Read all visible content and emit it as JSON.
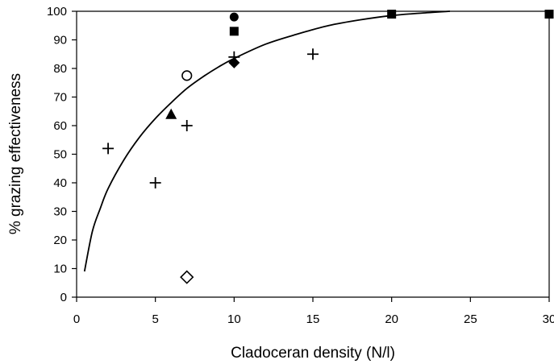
{
  "chart_data": {
    "type": "scatter",
    "title": "",
    "xlabel": "Cladoceran density (N/l)",
    "ylabel": "% grazing effectiveness",
    "xlim": [
      0,
      30
    ],
    "ylim": [
      0,
      100
    ],
    "x_ticks": [
      0,
      5,
      10,
      15,
      20,
      25,
      30
    ],
    "y_ticks": [
      0,
      10,
      20,
      30,
      40,
      50,
      60,
      70,
      80,
      90,
      100
    ],
    "grid": false,
    "legend": "none",
    "series": [
      {
        "marker": "plus",
        "points": [
          [
            2,
            52
          ],
          [
            5,
            40
          ],
          [
            7,
            60
          ],
          [
            10,
            84
          ],
          [
            15,
            85
          ]
        ]
      },
      {
        "marker": "filled-circle",
        "points": [
          [
            10,
            98
          ]
        ]
      },
      {
        "marker": "filled-square",
        "points": [
          [
            10,
            93
          ],
          [
            20,
            99
          ],
          [
            30,
            99
          ]
        ]
      },
      {
        "marker": "open-circle",
        "points": [
          [
            7,
            77.5
          ]
        ]
      },
      {
        "marker": "filled-triangle",
        "points": [
          [
            6,
            64
          ]
        ]
      },
      {
        "marker": "filled-diamond",
        "points": [
          [
            10,
            82
          ]
        ]
      },
      {
        "marker": "open-diamond",
        "points": [
          [
            7,
            7
          ]
        ]
      }
    ],
    "fit_curve": {
      "points": [
        [
          0.5,
          9
        ],
        [
          1,
          23
        ],
        [
          1.5,
          31
        ],
        [
          2,
          38
        ],
        [
          3,
          48
        ],
        [
          4,
          56
        ],
        [
          5,
          62.5
        ],
        [
          6,
          68
        ],
        [
          7,
          73
        ],
        [
          8,
          77
        ],
        [
          9,
          80.5
        ],
        [
          10,
          83.5
        ],
        [
          12,
          88.5
        ],
        [
          14,
          92
        ],
        [
          16,
          95
        ],
        [
          18,
          97
        ],
        [
          20,
          98.5
        ],
        [
          22,
          99.4
        ],
        [
          23.7,
          100
        ]
      ],
      "color": "#000000"
    },
    "marker_color": "#000000"
  }
}
